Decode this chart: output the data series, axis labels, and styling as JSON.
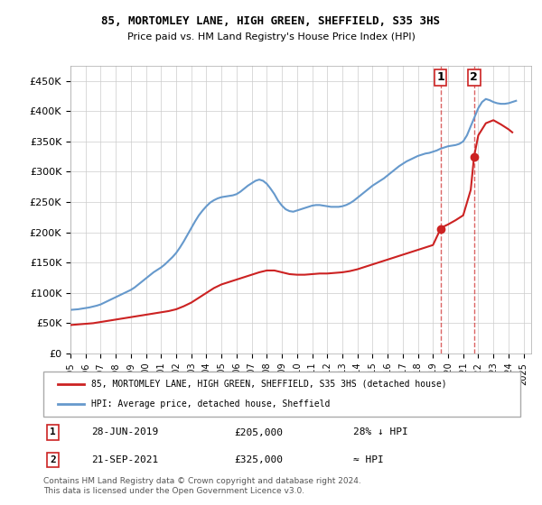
{
  "title": "85, MORTOMLEY LANE, HIGH GREEN, SHEFFIELD, S35 3HS",
  "subtitle": "Price paid vs. HM Land Registry's House Price Index (HPI)",
  "ylabel_ticks": [
    "£0",
    "£50K",
    "£100K",
    "£150K",
    "£200K",
    "£250K",
    "£300K",
    "£350K",
    "£400K",
    "£450K"
  ],
  "ytick_values": [
    0,
    50000,
    100000,
    150000,
    200000,
    250000,
    300000,
    350000,
    400000,
    450000
  ],
  "ylim": [
    0,
    475000
  ],
  "xlim_start": 1995,
  "xlim_end": 2025.5,
  "hpi_color": "#6699cc",
  "price_color": "#cc2222",
  "dashed_color": "#cc2222",
  "point1_date": "28-JUN-2019",
  "point1_price": 205000,
  "point1_label": "28% ↓ HPI",
  "point1_x": 2019.49,
  "point2_date": "21-SEP-2021",
  "point2_price": 325000,
  "point2_label": "≈ HPI",
  "point2_x": 2021.72,
  "legend_line1": "85, MORTOMLEY LANE, HIGH GREEN, SHEFFIELD, S35 3HS (detached house)",
  "legend_line2": "HPI: Average price, detached house, Sheffield",
  "footer": "Contains HM Land Registry data © Crown copyright and database right 2024.\nThis data is licensed under the Open Government Licence v3.0.",
  "table_rows": [
    {
      "num": "1",
      "date": "28-JUN-2019",
      "price": "£205,000",
      "note": "28% ↓ HPI"
    },
    {
      "num": "2",
      "date": "21-SEP-2021",
      "price": "£325,000",
      "note": "≈ HPI"
    }
  ],
  "hpi_data_x": [
    1995,
    1995.25,
    1995.5,
    1995.75,
    1996,
    1996.25,
    1996.5,
    1996.75,
    1997,
    1997.25,
    1997.5,
    1997.75,
    1998,
    1998.25,
    1998.5,
    1998.75,
    1999,
    1999.25,
    1999.5,
    1999.75,
    2000,
    2000.25,
    2000.5,
    2000.75,
    2001,
    2001.25,
    2001.5,
    2001.75,
    2002,
    2002.25,
    2002.5,
    2002.75,
    2003,
    2003.25,
    2003.5,
    2003.75,
    2004,
    2004.25,
    2004.5,
    2004.75,
    2005,
    2005.25,
    2005.5,
    2005.75,
    2006,
    2006.25,
    2006.5,
    2006.75,
    2007,
    2007.25,
    2007.5,
    2007.75,
    2008,
    2008.25,
    2008.5,
    2008.75,
    2009,
    2009.25,
    2009.5,
    2009.75,
    2010,
    2010.25,
    2010.5,
    2010.75,
    2011,
    2011.25,
    2011.5,
    2011.75,
    2012,
    2012.25,
    2012.5,
    2012.75,
    2013,
    2013.25,
    2013.5,
    2013.75,
    2014,
    2014.25,
    2014.5,
    2014.75,
    2015,
    2015.25,
    2015.5,
    2015.75,
    2016,
    2016.25,
    2016.5,
    2016.75,
    2017,
    2017.25,
    2017.5,
    2017.75,
    2018,
    2018.25,
    2018.5,
    2018.75,
    2019,
    2019.25,
    2019.5,
    2019.75,
    2020,
    2020.25,
    2020.5,
    2020.75,
    2021,
    2021.25,
    2021.5,
    2021.75,
    2022,
    2022.25,
    2022.5,
    2022.75,
    2023,
    2023.25,
    2023.5,
    2023.75,
    2024,
    2024.25,
    2024.5
  ],
  "hpi_data_y": [
    72000,
    72500,
    73000,
    74000,
    75000,
    76000,
    77500,
    79000,
    81000,
    84000,
    87000,
    90000,
    93000,
    96000,
    99000,
    102000,
    105000,
    109000,
    114000,
    119000,
    124000,
    129000,
    134000,
    138000,
    142000,
    147000,
    153000,
    159000,
    166000,
    175000,
    185000,
    196000,
    207000,
    218000,
    228000,
    236000,
    243000,
    249000,
    253000,
    256000,
    258000,
    259000,
    260000,
    261000,
    263000,
    267000,
    272000,
    277000,
    281000,
    285000,
    287000,
    285000,
    280000,
    272000,
    263000,
    252000,
    244000,
    238000,
    235000,
    234000,
    236000,
    238000,
    240000,
    242000,
    244000,
    245000,
    245000,
    244000,
    243000,
    242000,
    242000,
    242000,
    243000,
    245000,
    248000,
    252000,
    257000,
    262000,
    267000,
    272000,
    277000,
    281000,
    285000,
    289000,
    294000,
    299000,
    304000,
    309000,
    313000,
    317000,
    320000,
    323000,
    326000,
    328000,
    330000,
    331000,
    333000,
    335000,
    338000,
    340000,
    342000,
    343000,
    344000,
    346000,
    350000,
    360000,
    375000,
    390000,
    405000,
    415000,
    420000,
    418000,
    415000,
    413000,
    412000,
    412000,
    413000,
    415000,
    417000
  ],
  "price_data_x": [
    1995,
    1995.5,
    1996,
    1996.5,
    1997,
    1997.5,
    1998,
    1998.5,
    1999,
    1999.5,
    2000,
    2000.5,
    2001,
    2001.5,
    2002,
    2002.5,
    2003,
    2003.5,
    2004,
    2004.5,
    2005,
    2005.5,
    2006,
    2006.5,
    2007,
    2007.5,
    2008,
    2008.5,
    2009,
    2009.5,
    2010,
    2010.5,
    2011,
    2011.5,
    2012,
    2012.5,
    2013,
    2013.5,
    2014,
    2014.5,
    2015,
    2015.5,
    2016,
    2016.5,
    2017,
    2017.5,
    2018,
    2018.5,
    2019,
    2019.49,
    2019.75,
    2020,
    2020.5,
    2021,
    2021.5,
    2021.72,
    2022,
    2022.5,
    2023,
    2023.5,
    2024,
    2024.25
  ],
  "price_data_y": [
    47000,
    48000,
    49000,
    50000,
    52000,
    54000,
    56000,
    58000,
    60000,
    62000,
    64000,
    66000,
    68000,
    70000,
    73000,
    78000,
    84000,
    92000,
    100000,
    108000,
    114000,
    118000,
    122000,
    126000,
    130000,
    134000,
    137000,
    137000,
    134000,
    131000,
    130000,
    130000,
    131000,
    132000,
    132000,
    133000,
    134000,
    136000,
    139000,
    143000,
    147000,
    151000,
    155000,
    159000,
    163000,
    167000,
    171000,
    175000,
    179000,
    205000,
    210000,
    213000,
    220000,
    228000,
    270000,
    325000,
    360000,
    380000,
    385000,
    378000,
    370000,
    365000
  ]
}
